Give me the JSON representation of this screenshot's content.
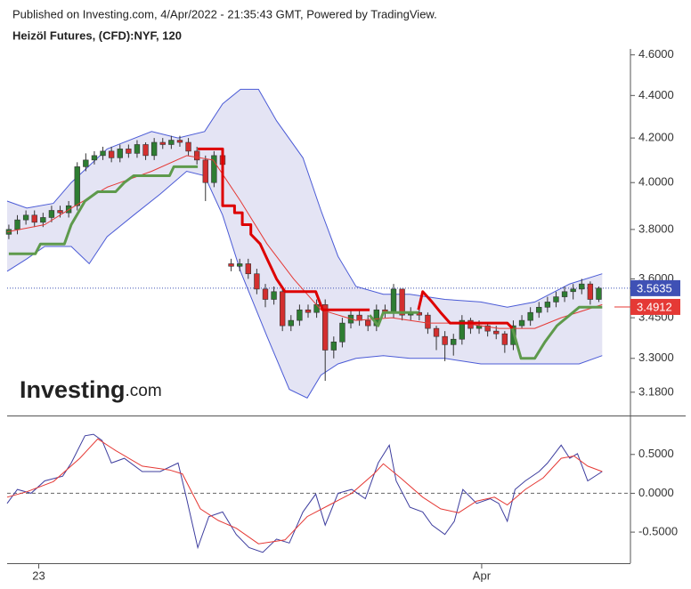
{
  "header": {
    "published": "Published on Investing.com, 4/Apr/2022 - 21:35:43 GMT, Powered by TradingView."
  },
  "watermark": {
    "brand": "Investing",
    "suffix": ".com"
  },
  "chart_data": [
    {
      "type": "candlestick",
      "title": "Heizöl Futures, (CFD):NYF, 120",
      "x": [
        0,
        1,
        2,
        3,
        4,
        5,
        6,
        7,
        8,
        9,
        10,
        11,
        12,
        13,
        14,
        15,
        16,
        17,
        18,
        19,
        20,
        21,
        22,
        23,
        24,
        25,
        26,
        27,
        28,
        29,
        30,
        31,
        32,
        33,
        34,
        35,
        36,
        37,
        38,
        39,
        40,
        41,
        42,
        43,
        44,
        45,
        46,
        47,
        48,
        49,
        50,
        51,
        52,
        53,
        54,
        55,
        56,
        57,
        58,
        59,
        60,
        61,
        62,
        63,
        64,
        65,
        66,
        67,
        68,
        69
      ],
      "open": [
        3.78,
        3.8,
        3.84,
        3.86,
        3.83,
        3.85,
        3.88,
        3.87,
        3.9,
        4.07,
        4.1,
        4.12,
        4.14,
        4.11,
        4.15,
        4.13,
        4.17,
        4.12,
        4.18,
        4.17,
        4.19,
        4.18,
        4.14,
        4.1,
        4.0,
        4.12,
        3.66,
        3.65,
        3.66,
        3.62,
        3.56,
        3.52,
        3.55,
        3.42,
        3.44,
        3.48,
        3.47,
        3.5,
        3.33,
        3.36,
        3.43,
        3.46,
        3.44,
        3.42,
        3.48,
        3.47,
        3.56,
        3.46,
        3.47,
        3.46,
        3.41,
        3.38,
        3.35,
        3.37,
        3.44,
        3.41,
        3.42,
        3.4,
        3.39,
        3.35,
        3.42,
        3.44,
        3.47,
        3.49,
        3.51,
        3.53,
        3.55,
        3.56,
        3.58,
        3.52
      ],
      "high": [
        3.82,
        3.86,
        3.88,
        3.88,
        3.87,
        3.9,
        3.9,
        3.92,
        4.09,
        4.13,
        4.14,
        4.16,
        4.16,
        4.17,
        4.17,
        4.19,
        4.18,
        4.2,
        4.2,
        4.21,
        4.21,
        4.2,
        4.16,
        4.12,
        4.14,
        4.14,
        3.68,
        3.68,
        3.68,
        3.64,
        3.58,
        3.57,
        3.56,
        3.46,
        3.5,
        3.5,
        3.52,
        3.52,
        3.38,
        3.45,
        3.48,
        3.48,
        3.46,
        3.5,
        3.5,
        3.58,
        3.56,
        3.49,
        3.49,
        3.47,
        3.42,
        3.4,
        3.39,
        3.46,
        3.45,
        3.44,
        3.43,
        3.42,
        3.4,
        3.44,
        3.46,
        3.49,
        3.51,
        3.53,
        3.55,
        3.57,
        3.58,
        3.6,
        3.59,
        3.57
      ],
      "low": [
        3.76,
        3.78,
        3.82,
        3.81,
        3.81,
        3.83,
        3.85,
        3.85,
        3.88,
        4.05,
        4.08,
        4.1,
        4.09,
        4.09,
        4.11,
        4.11,
        4.1,
        4.1,
        4.15,
        4.15,
        4.16,
        4.12,
        4.08,
        3.92,
        3.98,
        4.06,
        3.63,
        3.63,
        3.6,
        3.54,
        3.49,
        3.5,
        3.4,
        3.4,
        3.42,
        3.45,
        3.45,
        3.22,
        3.3,
        3.34,
        3.41,
        3.42,
        3.4,
        3.4,
        3.45,
        3.45,
        3.44,
        3.44,
        3.44,
        3.39,
        3.33,
        3.29,
        3.31,
        3.35,
        3.39,
        3.39,
        3.38,
        3.37,
        3.32,
        3.33,
        3.41,
        3.42,
        3.45,
        3.47,
        3.49,
        3.51,
        3.52,
        3.54,
        3.5,
        3.51
      ],
      "close": [
        3.8,
        3.84,
        3.86,
        3.83,
        3.85,
        3.88,
        3.87,
        3.9,
        4.07,
        4.1,
        4.12,
        4.14,
        4.11,
        4.15,
        4.13,
        4.17,
        4.12,
        4.18,
        4.17,
        4.19,
        4.18,
        4.14,
        4.1,
        4.0,
        4.12,
        4.08,
        3.65,
        3.66,
        3.62,
        3.56,
        3.52,
        3.55,
        3.42,
        3.44,
        3.48,
        3.47,
        3.5,
        3.33,
        3.36,
        3.43,
        3.46,
        3.44,
        3.42,
        3.48,
        3.47,
        3.56,
        3.46,
        3.47,
        3.46,
        3.41,
        3.38,
        3.35,
        3.37,
        3.44,
        3.41,
        3.42,
        3.4,
        3.39,
        3.35,
        3.42,
        3.44,
        3.47,
        3.49,
        3.51,
        3.53,
        3.55,
        3.56,
        3.58,
        3.52,
        3.5635
      ],
      "up_color": "#2e7d32",
      "down_color": "#d32f2f",
      "bands": {
        "fill": "#e4e4f4",
        "stroke": "#4b5bd6",
        "upper": {
          "x": [
            -0.2,
            2.1,
            5.2,
            7.3,
            11.5,
            16.7,
            19.8,
            22.9,
            25,
            27.1,
            29.2,
            31.3,
            34.4,
            36.5,
            38.5,
            40.6,
            43.8,
            46.9,
            51,
            55.2,
            58.3,
            61.5,
            65.6,
            69.4
          ],
          "values": [
            3.92,
            3.89,
            3.91,
            4.0,
            4.15,
            4.23,
            4.2,
            4.23,
            4.36,
            4.43,
            4.43,
            4.28,
            4.11,
            3.88,
            3.69,
            3.57,
            3.54,
            3.54,
            3.52,
            3.51,
            3.49,
            3.51,
            3.58,
            3.62
          ]
        },
        "lower": {
          "x": [
            -0.2,
            2.1,
            4.2,
            7.3,
            9.4,
            11.5,
            14.6,
            17.7,
            20.8,
            22.9,
            25,
            27.1,
            30.2,
            32.8,
            34.9,
            36.5,
            38.5,
            40.6,
            43.8,
            46.9,
            51,
            55.2,
            59.4,
            63.5,
            66.7,
            69.4
          ],
          "values": [
            3.63,
            3.68,
            3.73,
            3.73,
            3.66,
            3.77,
            3.86,
            3.95,
            4.05,
            4.03,
            3.86,
            3.63,
            3.38,
            3.19,
            3.16,
            3.24,
            3.28,
            3.3,
            3.31,
            3.3,
            3.3,
            3.28,
            3.28,
            3.28,
            3.28,
            3.31
          ]
        }
      },
      "series": [
        {
          "color": "#e53935",
          "width": 1,
          "x": [
            -0.2,
            4.2,
            7.3,
            11.5,
            16.7,
            20.8,
            23.9,
            27.1,
            30.2,
            33.3,
            36.5,
            40.6,
            44.8,
            49,
            53.1,
            57.3,
            61.5,
            64.6,
            69.4
          ],
          "values": [
            3.79,
            3.82,
            3.89,
            3.98,
            4.05,
            4.12,
            4.1,
            3.92,
            3.74,
            3.6,
            3.48,
            3.44,
            3.45,
            3.43,
            3.43,
            3.41,
            3.41,
            3.45,
            3.5
          ]
        },
        {
          "color": "#dd0000",
          "width": 3,
          "x": [
            22.1,
            25,
            25,
            26.4,
            26.4,
            27.3,
            27.3,
            28.3,
            28.3,
            29.4,
            30.2,
            31.3,
            32.3,
            35.9,
            36.7,
            42.2,
            44,
            47.9,
            48.4,
            49.5,
            50.5,
            51.6,
            58.3,
            58.9
          ],
          "values": [
            4.15,
            4.15,
            3.9,
            3.9,
            3.87,
            3.87,
            3.82,
            3.82,
            3.78,
            3.74,
            3.68,
            3.6,
            3.55,
            3.55,
            3.48,
            3.48,
            null,
            3.48,
            3.55,
            3.51,
            3.47,
            3.43,
            3.43,
            3.41
          ]
        },
        {
          "color": "#5e9a4c",
          "width": 3,
          "x": [
            0,
            3.1,
            3.7,
            6.5,
            7.3,
            8.9,
            10.4,
            12.5,
            13.5,
            14.6,
            18.8,
            19.3,
            22.1,
            30,
            42.2,
            43.2,
            43.8,
            47.9,
            52,
            58.9,
            59.9,
            61.5,
            62.7,
            64.1,
            65.6,
            66.7,
            69.4
          ],
          "values": [
            3.7,
            3.7,
            3.74,
            3.74,
            3.82,
            3.92,
            3.96,
            3.96,
            4.0,
            4.03,
            4.03,
            4.07,
            4.07,
            null,
            3.46,
            3.42,
            3.47,
            3.47,
            null,
            3.41,
            3.3,
            3.3,
            3.36,
            3.42,
            3.46,
            3.49,
            3.49
          ]
        }
      ],
      "price_markers": [
        {
          "value": 3.5635,
          "color": "#3f51b5",
          "dotted": true
        },
        {
          "value": 3.4912,
          "color": "#e53935",
          "dotted": false
        }
      ],
      "log_scale": true,
      "xlim": [
        -0.2,
        72.7
      ],
      "xticks": [
        {
          "value": 3.5,
          "label": "23"
        },
        {
          "value": 55.3,
          "label": "Apr"
        }
      ],
      "ylim": [
        3.1,
        4.63
      ],
      "yticks": [
        {
          "value": 4.6,
          "label": "4.6000"
        },
        {
          "value": 4.4,
          "label": "4.4000"
        },
        {
          "value": 4.2,
          "label": "4.2000"
        },
        {
          "value": 4.0,
          "label": "4.0000"
        },
        {
          "value": 3.8,
          "label": "3.8000"
        },
        {
          "value": 3.6,
          "label": "3.6000"
        },
        {
          "value": 3.45,
          "label": "3.4500"
        },
        {
          "value": 3.3,
          "label": "3.3000"
        },
        {
          "value": 3.18,
          "label": "3.1800"
        }
      ]
    },
    {
      "type": "line",
      "series": [
        {
          "color": "#3d3d9e",
          "x": [
            -0.2,
            1.0,
            2.6,
            4.2,
            6.3,
            7.3,
            8.9,
            9.9,
            10.9,
            12.0,
            13.5,
            15.6,
            17.7,
            19.8,
            20.8,
            22.1,
            23.4,
            25.0,
            26.6,
            28.1,
            29.7,
            31.3,
            32.8,
            34.4,
            35.9,
            37.0,
            38.5,
            40.1,
            41.7,
            43.2,
            44.5,
            45.3,
            46.9,
            48.4,
            49.5,
            51.0,
            52.1,
            53.1,
            54.7,
            56.3,
            57.3,
            58.3,
            59.2,
            60.4,
            62.0,
            63.0,
            64.6,
            65.6,
            66.5,
            67.7,
            69.4
          ],
          "values": [
            -0.13,
            0.05,
            0,
            0.16,
            0.22,
            0.39,
            0.74,
            0.76,
            0.68,
            0.39,
            0.45,
            0.28,
            0.28,
            0.39,
            -0.07,
            -0.7,
            -0.3,
            -0.24,
            -0.53,
            -0.7,
            -0.76,
            -0.59,
            -0.64,
            -0.24,
            -0.01,
            -0.41,
            0,
            0.05,
            -0.07,
            0.39,
            0.62,
            0.16,
            -0.18,
            -0.24,
            -0.41,
            -0.53,
            -0.36,
            0.05,
            -0.13,
            -0.07,
            -0.13,
            -0.36,
            0.05,
            0.16,
            0.28,
            0.39,
            0.62,
            0.45,
            0.51,
            0.16,
            0.28
          ]
        },
        {
          "color": "#e53935",
          "x": [
            -0.2,
            2.1,
            5.2,
            8.3,
            10.4,
            12.5,
            15.6,
            18.8,
            20.3,
            22.4,
            24.5,
            26.6,
            29.2,
            32.3,
            34.9,
            37.5,
            40.1,
            42.7,
            43.8,
            45.8,
            48.4,
            50.5,
            52.6,
            54.7,
            56.8,
            58.3,
            60.4,
            62.5,
            64.6,
            66.1,
            67.7,
            69.4
          ],
          "values": [
            -0.05,
            0.02,
            0.15,
            0.45,
            0.7,
            0.55,
            0.35,
            0.3,
            0.25,
            -0.2,
            -0.35,
            -0.45,
            -0.65,
            -0.6,
            -0.3,
            -0.15,
            0,
            0.25,
            0.38,
            0.2,
            -0.05,
            -0.2,
            -0.25,
            -0.1,
            -0.05,
            -0.15,
            0.05,
            0.2,
            0.45,
            0.48,
            0.35,
            0.28
          ]
        }
      ],
      "zero_line": 0,
      "xlim": [
        -0.2,
        72.7
      ],
      "ylim": [
        -0.9,
        0.99
      ],
      "yticks": [
        {
          "value": 0.5,
          "label": "0.5000"
        },
        {
          "value": 0,
          "label": "0.0000"
        },
        {
          "value": -0.5,
          "label": "-0.5000"
        }
      ]
    }
  ]
}
